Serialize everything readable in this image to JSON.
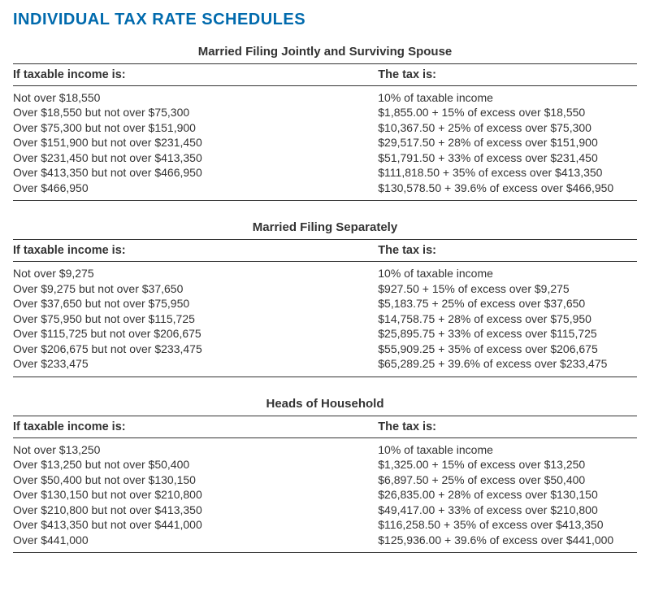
{
  "page": {
    "title": "INDIVIDUAL TAX RATE SCHEDULES",
    "title_color": "#006aad",
    "text_color": "#333333",
    "background_color": "#ffffff",
    "rule_color": "#333333",
    "font_family": "Myriad Pro / Segoe UI / Arial",
    "body_fontsize": 14,
    "title_fontsize": 20
  },
  "columns": {
    "left_header": "If taxable income is:",
    "right_header": "The tax is:",
    "left_width_pct": 58.5,
    "right_width_pct": 41.5
  },
  "schedules": [
    {
      "title": "Married Filing Jointly and Surviving Spouse",
      "rows": [
        {
          "income": "Not over $18,550",
          "tax": "10% of taxable income"
        },
        {
          "income": "Over $18,550 but not over $75,300",
          "tax": "$1,855.00 + 15% of excess over $18,550"
        },
        {
          "income": "Over $75,300 but not over $151,900",
          "tax": "$10,367.50 + 25% of excess over $75,300"
        },
        {
          "income": "Over $151,900 but not over $231,450",
          "tax": "$29,517.50 + 28% of excess over $151,900"
        },
        {
          "income": "Over $231,450 but not over $413,350",
          "tax": "$51,791.50 + 33% of excess over $231,450"
        },
        {
          "income": "Over $413,350 but not over $466,950",
          "tax": "$111,818.50 + 35% of excess over $413,350"
        },
        {
          "income": "Over $466,950",
          "tax": "$130,578.50 + 39.6% of excess over $466,950"
        }
      ]
    },
    {
      "title": "Married Filing Separately",
      "rows": [
        {
          "income": "Not over $9,275",
          "tax": "10% of taxable income"
        },
        {
          "income": "Over $9,275 but not over $37,650",
          "tax": "$927.50 + 15% of excess over $9,275"
        },
        {
          "income": "Over $37,650 but not over $75,950",
          "tax": "$5,183.75 + 25% of excess over $37,650"
        },
        {
          "income": "Over $75,950 but not over $115,725",
          "tax": "$14,758.75 + 28% of excess over $75,950"
        },
        {
          "income": "Over $115,725 but not over $206,675",
          "tax": "$25,895.75 + 33% of excess over $115,725"
        },
        {
          "income": "Over $206,675 but not over $233,475",
          "tax": "$55,909.25 + 35% of excess over $206,675"
        },
        {
          "income": "Over $233,475",
          "tax": "$65,289.25 + 39.6% of excess over $233,475"
        }
      ]
    },
    {
      "title": "Heads of Household",
      "rows": [
        {
          "income": "Not over $13,250",
          "tax": "10% of taxable income"
        },
        {
          "income": "Over $13,250 but not over $50,400",
          "tax": "$1,325.00 + 15% of excess over $13,250"
        },
        {
          "income": "Over $50,400 but not over $130,150",
          "tax": "$6,897.50 + 25% of excess over $50,400"
        },
        {
          "income": "Over $130,150 but not over $210,800",
          "tax": "$26,835.00 + 28% of excess over $130,150"
        },
        {
          "income": "Over $210,800 but not over $413,350",
          "tax": "$49,417.00 + 33% of excess over $210,800"
        },
        {
          "income": "Over $413,350 but not over $441,000",
          "tax": "$116,258.50 + 35% of excess over $413,350"
        },
        {
          "income": "Over $441,000",
          "tax": "$125,936.00 + 39.6% of excess over $441,000"
        }
      ]
    }
  ]
}
